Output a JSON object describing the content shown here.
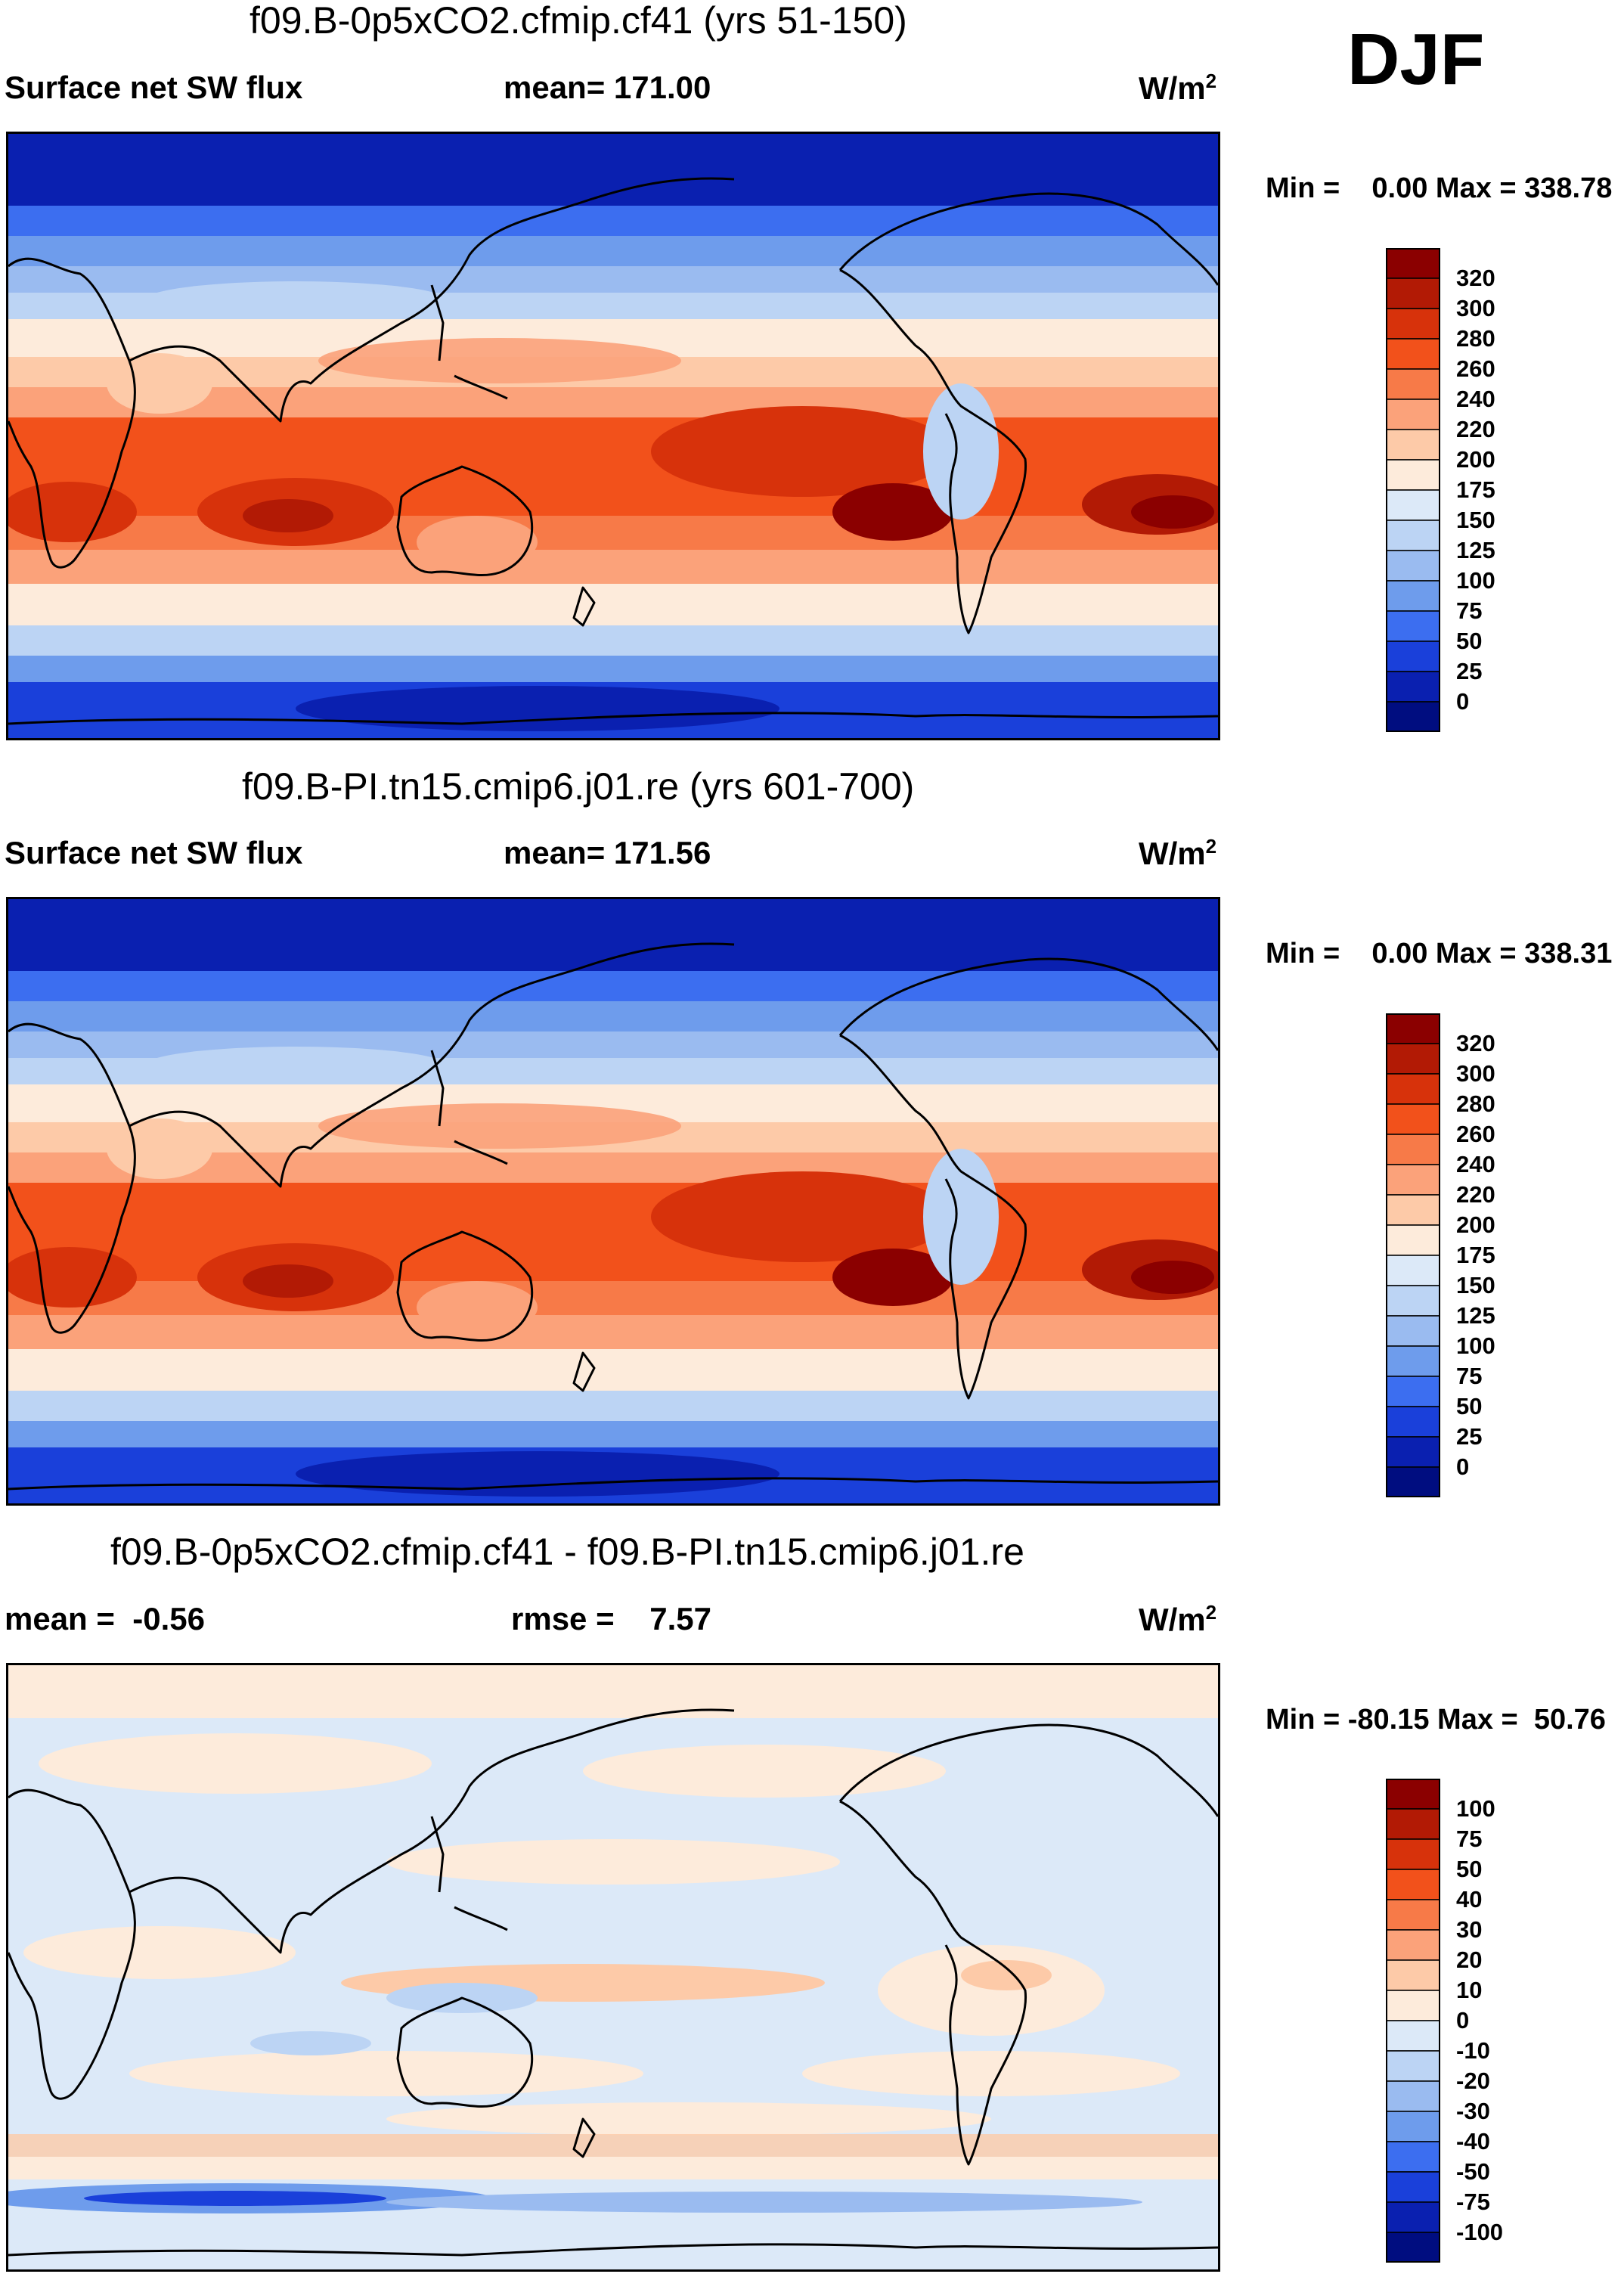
{
  "season": "DJF",
  "panels": [
    {
      "title": "f09.B-0p5xCO2.cfmip.cf41 (yrs 51-150)",
      "left_label": "Surface net SW flux",
      "center_label": "mean= 171.00",
      "units": "W/m",
      "units_sup": "2",
      "minmax": "Min =    0.00 Max = 338.78"
    },
    {
      "title": "f09.B-PI.tn15.cmip6.j01.re (yrs 601-700)",
      "left_label": "Surface net SW flux",
      "center_label": "mean= 171.56",
      "units": "W/m",
      "units_sup": "2",
      "minmax": "Min =    0.00 Max = 338.31"
    },
    {
      "title": "f09.B-0p5xCO2.cfmip.cf41 - f09.B-PI.tn15.cmip6.j01.re",
      "left_label": "mean =  -0.56",
      "center_label": "rmse =    7.57",
      "units": "W/m",
      "units_sup": "2",
      "minmax": "Min = -80.15 Max =  50.76"
    }
  ],
  "chart_data": [
    {
      "type": "heatmap",
      "title": "f09.B-0p5xCO2.cfmip.cf41 (yrs 51-150)",
      "variable": "Surface net SW flux",
      "mean": 171.0,
      "min": 0.0,
      "max": 338.78,
      "units": "W/m2",
      "colorbar": {
        "levels": [
          "320",
          "300",
          "280",
          "260",
          "240",
          "220",
          "200",
          "175",
          "150",
          "125",
          "100",
          "75",
          "50",
          "25",
          "0"
        ],
        "colors": [
          "#8b0000",
          "#b21a05",
          "#d7320b",
          "#f2511b",
          "#f77a48",
          "#fba27a",
          "#fdcaa8",
          "#fdebdb",
          "#dce9f8",
          "#bcd4f4",
          "#9abbf0",
          "#6e9cec",
          "#3c6ef0",
          "#1a40da",
          "#0a20b0",
          "#000d80"
        ]
      }
    },
    {
      "type": "heatmap",
      "title": "f09.B-PI.tn15.cmip6.j01.re (yrs 601-700)",
      "variable": "Surface net SW flux",
      "mean": 171.56,
      "min": 0.0,
      "max": 338.31,
      "units": "W/m2",
      "colorbar": {
        "levels": [
          "320",
          "300",
          "280",
          "260",
          "240",
          "220",
          "200",
          "175",
          "150",
          "125",
          "100",
          "75",
          "50",
          "25",
          "0"
        ],
        "colors": [
          "#8b0000",
          "#b21a05",
          "#d7320b",
          "#f2511b",
          "#f77a48",
          "#fba27a",
          "#fdcaa8",
          "#fdebdb",
          "#dce9f8",
          "#bcd4f4",
          "#9abbf0",
          "#6e9cec",
          "#3c6ef0",
          "#1a40da",
          "#0a20b0",
          "#000d80"
        ]
      }
    },
    {
      "type": "heatmap",
      "title": "f09.B-0p5xCO2.cfmip.cf41 - f09.B-PI.tn15.cmip6.j01.re",
      "mean": -0.56,
      "rmse": 7.57,
      "min": -80.15,
      "max": 50.76,
      "units": "W/m2",
      "colorbar": {
        "levels": [
          "100",
          "75",
          "50",
          "40",
          "30",
          "20",
          "10",
          "0",
          "-10",
          "-20",
          "-30",
          "-40",
          "-50",
          "-75",
          "-100"
        ],
        "colors": [
          "#8b0000",
          "#b21a05",
          "#d7320b",
          "#f2511b",
          "#f77a48",
          "#fba27a",
          "#fdcaa8",
          "#fdebdb",
          "#dce9f8",
          "#bcd4f4",
          "#9abbf0",
          "#6e9cec",
          "#3c6ef0",
          "#1a40da",
          "#0a20b0",
          "#000d80"
        ]
      }
    }
  ]
}
